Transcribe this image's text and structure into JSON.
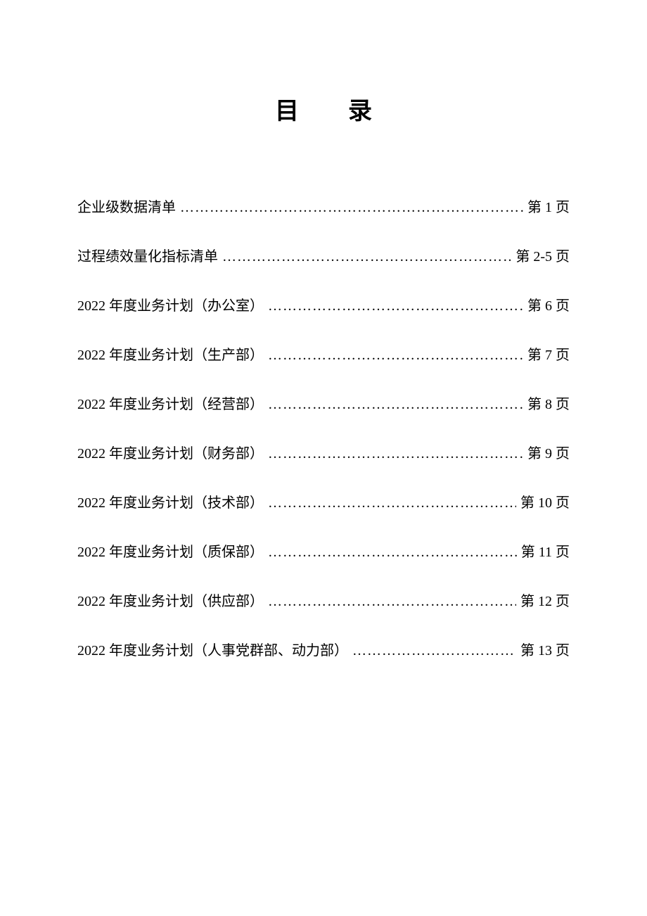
{
  "title": "目录",
  "entries": [
    {
      "label": "企业级数据清单",
      "page": "第 1 页"
    },
    {
      "label": "过程绩效量化指标清单",
      "page": "第 2-5 页"
    },
    {
      "label": "2022 年度业务计划（办公室）",
      "page": "第 6 页"
    },
    {
      "label": "2022 年度业务计划（生产部）",
      "page": "第 7 页"
    },
    {
      "label": "2022 年度业务计划（经营部）",
      "page": "第 8 页"
    },
    {
      "label": "2022 年度业务计划（财务部）",
      "page": "第 9 页"
    },
    {
      "label": "2022 年度业务计划（技术部）",
      "page": "第 10 页"
    },
    {
      "label": "2022 年度业务计划（质保部）",
      "page": "第 11 页"
    },
    {
      "label": "2022 年度业务计划（供应部）",
      "page": "第 12 页"
    },
    {
      "label": "2022 年度业务计划（人事党群部、动力部）",
      "page": "第 13 页"
    }
  ],
  "style": {
    "background_color": "#ffffff",
    "text_color": "#000000",
    "title_fontsize": 34,
    "body_fontsize": 20,
    "entry_gap": 38,
    "font_family": "SimSun"
  }
}
